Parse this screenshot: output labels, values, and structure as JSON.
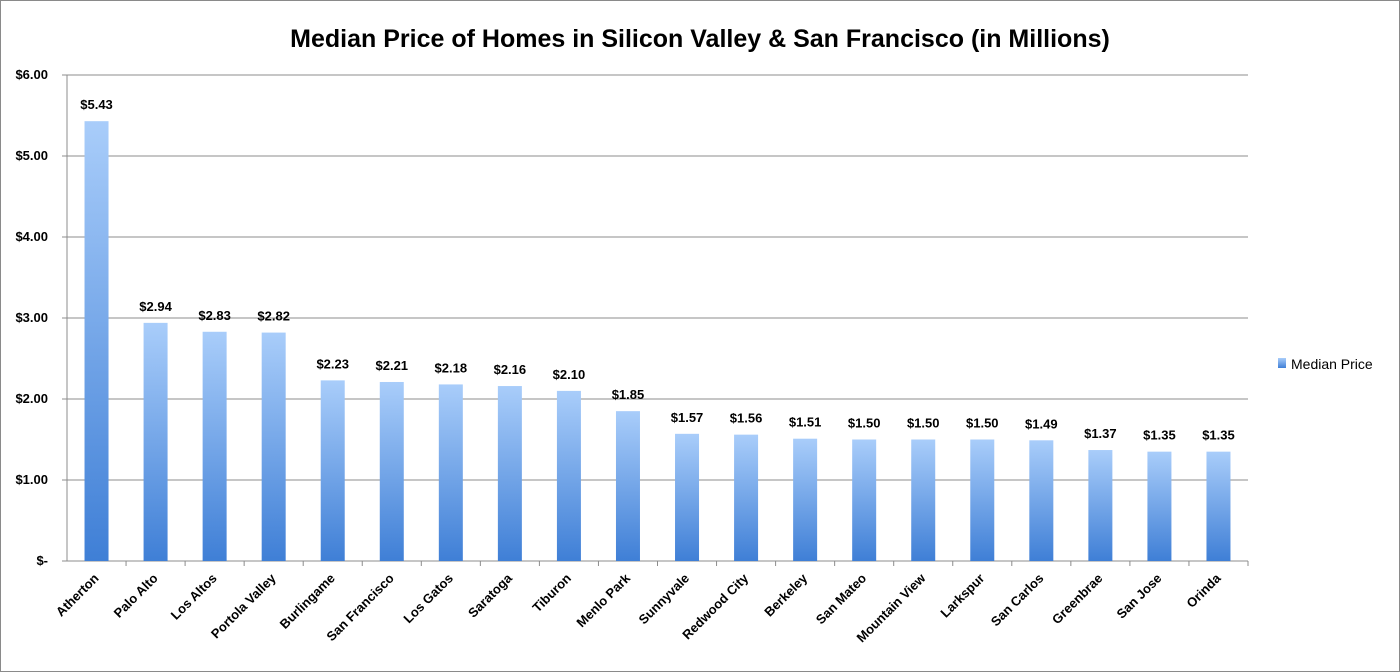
{
  "chart_data": {
    "type": "bar",
    "title": "Median Price of Homes in Silicon Valley & San Francisco (in Millions)",
    "xlabel": "",
    "ylabel": "",
    "ylim": [
      0,
      6
    ],
    "y_ticks": [
      0,
      1,
      2,
      3,
      4,
      5,
      6
    ],
    "y_tick_labels": [
      "$-",
      "$1.00",
      "$2.00",
      "$3.00",
      "$4.00",
      "$5.00",
      "$6.00"
    ],
    "grid": true,
    "legend_position": "right",
    "categories": [
      "Atherton",
      "Palo Alto",
      "Los Altos",
      "Portola Valley",
      "Burlingame",
      "San Francisco",
      "Los Gatos",
      "Saratoga",
      "Tiburon",
      "Menlo Park",
      "Sunnyvale",
      "Redwood City",
      "Berkeley",
      "San Mateo",
      "Mountain View",
      "Larkspur",
      "San Carlos",
      "Greenbrae",
      "San Jose",
      "Orinda"
    ],
    "series": [
      {
        "name": "Median Price",
        "values": [
          5.43,
          2.94,
          2.83,
          2.82,
          2.23,
          2.21,
          2.18,
          2.16,
          2.1,
          1.85,
          1.57,
          1.56,
          1.51,
          1.5,
          1.5,
          1.5,
          1.49,
          1.37,
          1.35,
          1.35
        ],
        "labels": [
          "$5.43",
          "$2.94",
          "$2.83",
          "$2.82",
          "$2.23",
          "$2.21",
          "$2.18",
          "$2.16",
          "$2.10",
          "$1.85",
          "$1.57",
          "$1.56",
          "$1.51",
          "$1.50",
          "$1.50",
          "$1.50",
          "$1.49",
          "$1.37",
          "$1.35",
          "$1.35"
        ],
        "color_top": "#a9cdfa",
        "color_bottom": "#3f7fd6"
      }
    ],
    "colors": {
      "grid": "#8c8c8c",
      "axis": "#8c8c8c",
      "text": "#000000",
      "frame": "#8a8a8a"
    }
  }
}
